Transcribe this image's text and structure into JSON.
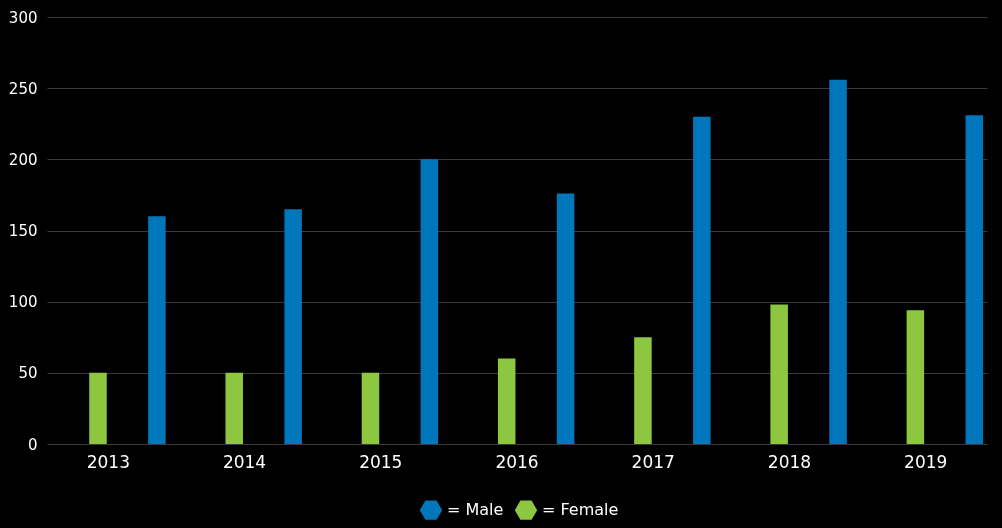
{
  "chart_data": {
    "type": "bar",
    "categories": [
      "2013",
      "2014",
      "2015",
      "2016",
      "2017",
      "2018",
      "2019"
    ],
    "series": [
      {
        "name": "= Male",
        "color": "#0077bb",
        "values": [
          160,
          165,
          200,
          176,
          230,
          256,
          231
        ]
      },
      {
        "name": "= Female",
        "color": "#8dc63f",
        "values": [
          50,
          50,
          50,
          60,
          75,
          98,
          94
        ]
      }
    ],
    "ylim": [
      0,
      300
    ],
    "yticks": [
      0,
      50,
      100,
      150,
      200,
      250,
      300
    ],
    "grid": "y",
    "legend": "bottom"
  }
}
